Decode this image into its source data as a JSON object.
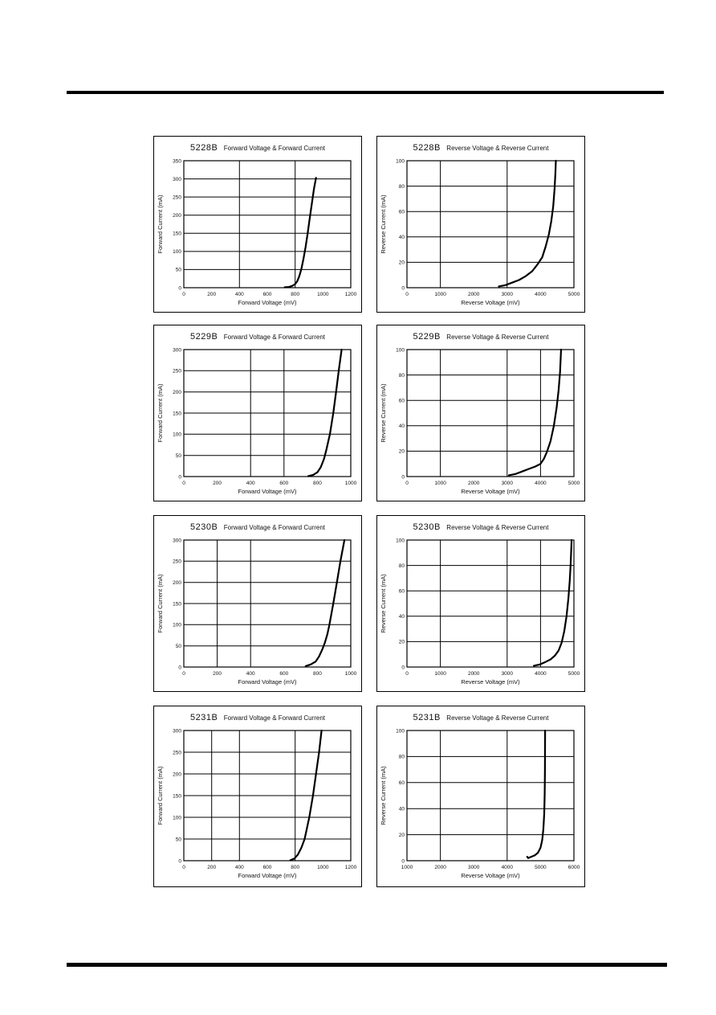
{
  "page": {
    "background": "#ffffff",
    "ink_color": "#000000",
    "grid_layout": "4 rows x 2 columns of characteristic curves"
  },
  "chart_data": [
    {
      "type": "line",
      "part": "5228B",
      "title_rest": "Forward Voltage & Forward Current",
      "title": "5228B Forward Voltage & Forward Current",
      "xlabel": "Forward Voltage (mV)",
      "ylabel": "Forward Current (mA)",
      "xlim": [
        0,
        1200
      ],
      "ylim": [
        0,
        350
      ],
      "xticks": [
        0,
        200,
        400,
        600,
        800,
        1000,
        1200
      ],
      "yticks": [
        0,
        50,
        100,
        150,
        200,
        250,
        300,
        350
      ],
      "vgrid": [
        400,
        800
      ],
      "grid": "on",
      "legend": "none",
      "series": [
        {
          "name": "IF-VF",
          "points": [
            [
              725,
              1
            ],
            [
              755,
              2
            ],
            [
              780,
              5
            ],
            [
              800,
              10
            ],
            [
              815,
              18
            ],
            [
              830,
              32
            ],
            [
              845,
              52
            ],
            [
              860,
              80
            ],
            [
              875,
              112
            ],
            [
              890,
              150
            ],
            [
              905,
              192
            ],
            [
              920,
              232
            ],
            [
              935,
              272
            ],
            [
              950,
              303
            ]
          ]
        }
      ]
    },
    {
      "type": "line",
      "part": "5228B",
      "title_rest": "Reverse Voltage & Reverse Current",
      "title": "5228B Reverse Voltage & Reverse Current",
      "xlabel": "Reverse Voltage (mV)",
      "ylabel": "Reverse Current (mA)",
      "xlim": [
        0,
        5000
      ],
      "ylim": [
        0,
        100
      ],
      "xticks": [
        0,
        1000,
        2000,
        3000,
        4000,
        5000
      ],
      "yticks": [
        0,
        20,
        40,
        60,
        80,
        100
      ],
      "vgrid": [
        1000,
        3000
      ],
      "grid": "on",
      "legend": "none",
      "series": [
        {
          "name": "IR-VR",
          "points": [
            [
              2750,
              1
            ],
            [
              2950,
              2
            ],
            [
              3150,
              4
            ],
            [
              3350,
              6
            ],
            [
              3550,
              9
            ],
            [
              3750,
              13
            ],
            [
              3900,
              18
            ],
            [
              4050,
              24
            ],
            [
              4150,
              32
            ],
            [
              4250,
              42
            ],
            [
              4320,
              52
            ],
            [
              4380,
              64
            ],
            [
              4420,
              78
            ],
            [
              4445,
              90
            ],
            [
              4460,
              100
            ]
          ]
        }
      ]
    },
    {
      "type": "line",
      "part": "5229B",
      "title_rest": "Forward Voltage & Forward Current",
      "title": "5229B Forward Voltage & Forward Current",
      "xlabel": "Forward Voltage (mV)",
      "ylabel": "Forward Current (mA)",
      "xlim": [
        0,
        1000
      ],
      "ylim": [
        0,
        300
      ],
      "xticks": [
        0,
        200,
        400,
        600,
        800,
        1000
      ],
      "yticks": [
        0,
        50,
        100,
        150,
        200,
        250,
        300
      ],
      "vgrid": [
        400,
        600
      ],
      "grid": "on",
      "legend": "none",
      "series": [
        {
          "name": "IF-VF",
          "points": [
            [
              745,
              1
            ],
            [
              775,
              4
            ],
            [
              800,
              10
            ],
            [
              820,
              22
            ],
            [
              840,
              42
            ],
            [
              855,
              65
            ],
            [
              875,
              100
            ],
            [
              895,
              150
            ],
            [
              912,
              200
            ],
            [
              928,
              250
            ],
            [
              945,
              300
            ]
          ]
        }
      ]
    },
    {
      "type": "line",
      "part": "5229B",
      "title_rest": "Reverse Voltage & Reverse Current",
      "title": "5229B Reverse Voltage & Reverse Current",
      "xlabel": "Reverse Voltage (mV)",
      "ylabel": "Reverse Current (mA)",
      "xlim": [
        0,
        5000
      ],
      "ylim": [
        0,
        100
      ],
      "xticks": [
        0,
        1000,
        2000,
        3000,
        4000,
        5000
      ],
      "yticks": [
        0,
        20,
        40,
        60,
        80,
        100
      ],
      "vgrid": [
        1000,
        3000,
        4000
      ],
      "grid": "on",
      "legend": "none",
      "series": [
        {
          "name": "IR-VR",
          "points": [
            [
              3050,
              1
            ],
            [
              3250,
              2
            ],
            [
              3450,
              4
            ],
            [
              3650,
              6
            ],
            [
              3850,
              8
            ],
            [
              4000,
              10
            ],
            [
              4100,
              14
            ],
            [
              4200,
              20
            ],
            [
              4300,
              28
            ],
            [
              4400,
              40
            ],
            [
              4480,
              54
            ],
            [
              4540,
              68
            ],
            [
              4585,
              82
            ],
            [
              4615,
              100
            ]
          ]
        }
      ]
    },
    {
      "type": "line",
      "part": "5230B",
      "title_rest": "Forward Voltage & Forward Current",
      "title": "5230B Forward Voltage & Forward Current",
      "xlabel": "Forward Voltage (mV)",
      "ylabel": "Forward Current (mA)",
      "xlim": [
        0,
        1000
      ],
      "ylim": [
        0,
        300
      ],
      "xticks": [
        0,
        200,
        400,
        600,
        800,
        1000
      ],
      "yticks": [
        0,
        50,
        100,
        150,
        200,
        250,
        300
      ],
      "vgrid": [
        200,
        400
      ],
      "grid": "on",
      "legend": "none",
      "series": [
        {
          "name": "IF-VF",
          "points": [
            [
              730,
              2
            ],
            [
              760,
              6
            ],
            [
              790,
              13
            ],
            [
              810,
              25
            ],
            [
              830,
              42
            ],
            [
              845,
              58
            ],
            [
              860,
              78
            ],
            [
              872,
              100
            ],
            [
              895,
              150
            ],
            [
              917,
              200
            ],
            [
              938,
              250
            ],
            [
              962,
              300
            ]
          ]
        }
      ]
    },
    {
      "type": "line",
      "part": "5230B",
      "title_rest": "Reverse Voltage & Reverse Current",
      "title": "5230B Reverse Voltage & Reverse Current",
      "xlabel": "Reverse Voltage (mV)",
      "ylabel": "Reverse Current (mA)",
      "xlim": [
        0,
        5000
      ],
      "ylim": [
        0,
        100
      ],
      "xticks": [
        0,
        1000,
        2000,
        3000,
        4000,
        5000
      ],
      "yticks": [
        0,
        20,
        40,
        60,
        80,
        100
      ],
      "vgrid": [
        1000,
        3000,
        4000
      ],
      "grid": "on",
      "legend": "none",
      "series": [
        {
          "name": "IR-VR",
          "points": [
            [
              3800,
              1
            ],
            [
              3980,
              2
            ],
            [
              4150,
              4
            ],
            [
              4300,
              6
            ],
            [
              4430,
              9
            ],
            [
              4540,
              13
            ],
            [
              4630,
              19
            ],
            [
              4710,
              28
            ],
            [
              4780,
              40
            ],
            [
              4835,
              54
            ],
            [
              4875,
              68
            ],
            [
              4905,
              82
            ],
            [
              4930,
              100
            ]
          ]
        }
      ]
    },
    {
      "type": "line",
      "part": "5231B",
      "title_rest": "Forward Voltage & Forward Current",
      "title": "5231B Forward Voltage & Forward Current",
      "xlabel": "Forward Voltage (mV)",
      "ylabel": "Forward Current (mA)",
      "xlim": [
        0,
        1200
      ],
      "ylim": [
        0,
        300
      ],
      "xticks": [
        0,
        200,
        400,
        600,
        800,
        1000,
        1200
      ],
      "yticks": [
        0,
        50,
        100,
        150,
        200,
        250,
        300
      ],
      "vgrid": [
        200,
        400,
        800
      ],
      "grid": "on",
      "legend": "none",
      "series": [
        {
          "name": "IF-VF",
          "points": [
            [
              765,
              1
            ],
            [
              795,
              5
            ],
            [
              820,
              14
            ],
            [
              845,
              30
            ],
            [
              868,
              50
            ],
            [
              885,
              75
            ],
            [
              902,
              100
            ],
            [
              928,
              150
            ],
            [
              950,
              200
            ],
            [
              972,
              250
            ],
            [
              990,
              300
            ]
          ]
        }
      ]
    },
    {
      "type": "line",
      "part": "5231B",
      "title_rest": "Reverse Voltage & Reverse Current",
      "title": "5231B Reverse Voltage & Reverse Current",
      "xlabel": "Reverse Voltage (mV)",
      "ylabel": "Reverse Current (mA)",
      "xlim": [
        1000,
        6000
      ],
      "ylim": [
        0,
        100
      ],
      "xticks": [
        1000,
        2000,
        3000,
        4000,
        5000,
        6000
      ],
      "yticks": [
        0,
        20,
        40,
        60,
        80,
        100
      ],
      "vgrid": [
        2000,
        4000
      ],
      "grid": "on",
      "legend": "none",
      "series": [
        {
          "name": "IR-VR",
          "points": [
            [
              4600,
              3
            ],
            [
              4630,
              2
            ],
            [
              4720,
              3
            ],
            [
              4820,
              4
            ],
            [
              4920,
              6
            ],
            [
              5000,
              10
            ],
            [
              5050,
              16
            ],
            [
              5085,
              24
            ],
            [
              5110,
              36
            ],
            [
              5125,
              52
            ],
            [
              5132,
              70
            ],
            [
              5138,
              100
            ]
          ]
        }
      ]
    }
  ]
}
